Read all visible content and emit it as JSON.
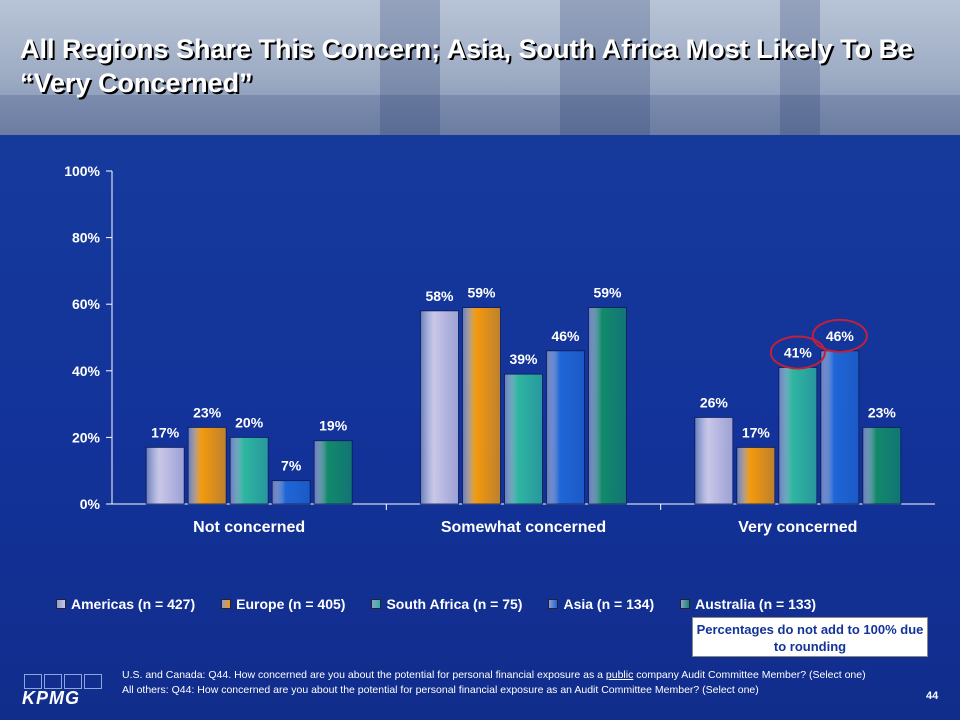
{
  "title": "All Regions Share This Concern; Asia, South Africa Most Likely To Be “Very Concerned”",
  "chart_data": {
    "type": "bar",
    "categories": [
      "Not concerned",
      "Somewhat concerned",
      "Very concerned"
    ],
    "series": [
      {
        "name": "Americas (n = 427)",
        "values": [
          17,
          58,
          26
        ],
        "labels": [
          "17%",
          "58%",
          "26%"
        ],
        "color": "#c9c6e8"
      },
      {
        "name": "Europe (n = 405)",
        "values": [
          23,
          59,
          17
        ],
        "labels": [
          "23%",
          "59%",
          "17%"
        ],
        "color": "#f49a0c"
      },
      {
        "name": "South Africa (n = 75)",
        "values": [
          20,
          39,
          41
        ],
        "labels": [
          "20%",
          "39%",
          "41%"
        ],
        "color": "#2fb7a0"
      },
      {
        "name": "Asia (n = 134)",
        "values": [
          7,
          46,
          46
        ],
        "labels": [
          "7%",
          "46%",
          "46%"
        ],
        "color": "#1f66d6"
      },
      {
        "name": "Australia (n = 133)",
        "values": [
          19,
          59,
          23
        ],
        "labels": [
          "19%",
          "59%",
          "23%"
        ],
        "color": "#128a6a"
      }
    ],
    "y_ticks": [
      "0%",
      "20%",
      "40%",
      "60%",
      "80%",
      "100%"
    ],
    "ylim": [
      0,
      100
    ],
    "highlighted": [
      {
        "category": "Very concerned",
        "series": "South Africa (n = 75)"
      },
      {
        "category": "Very concerned",
        "series": "Asia (n = 134)"
      }
    ],
    "legend_position": "bottom",
    "grid": false
  },
  "note": "Percentages do not add to 100% due to rounding",
  "footnote": {
    "line1_pre": "U.S. and Canada: Q44. How concerned are you about the potential for personal financial exposure as a ",
    "line1_underlined": "public",
    "line1_post": " company Audit Committee Member? (Select one)",
    "line2": "All others: Q44: How concerned are you about the potential for personal financial exposure as an Audit Committee Member? (Select one)"
  },
  "logo_text": "KPMG",
  "page_number": "44",
  "colors": {
    "background": "#12318f",
    "highlight_circle": "#c2203a",
    "axis": "#ffffff"
  }
}
